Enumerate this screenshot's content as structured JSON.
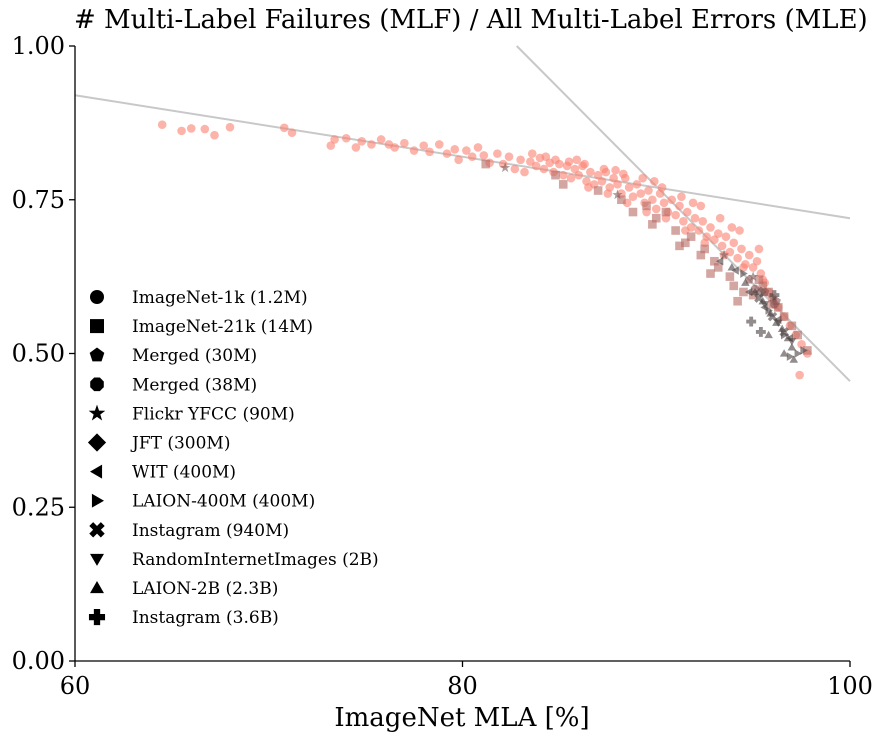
{
  "chart_data": {
    "type": "scatter",
    "title": "# Multi-Label Failures (MLF) / All Multi-Label Errors (MLE)",
    "xlabel": "ImageNet MLA [%]",
    "ylabel": "",
    "xlim": [
      60,
      100
    ],
    "ylim": [
      0.0,
      1.0
    ],
    "xticks": [
      "60",
      "80",
      "100"
    ],
    "yticks": [
      "0.00",
      "0.25",
      "0.50",
      "0.75",
      "1.00"
    ],
    "grid": false,
    "legend_position": "left",
    "colors": {
      "primary": "#fa8072",
      "secondary": "#b86a64",
      "dark": "#4a3f3f",
      "trend": "#c8c8c8"
    },
    "trend_lines": [
      {
        "x": [
          60,
          100
        ],
        "y": [
          0.92,
          0.72
        ]
      },
      {
        "x": [
          82.8,
          100
        ],
        "y": [
          1.0,
          0.455
        ]
      }
    ],
    "series": [
      {
        "name": "ImageNet-1k (1.2M)",
        "marker": "circle",
        "color": "#fa8072",
        "points": [
          [
            64.5,
            0.872
          ],
          [
            65.5,
            0.862
          ],
          [
            66.0,
            0.866
          ],
          [
            66.7,
            0.865
          ],
          [
            67.2,
            0.855
          ],
          [
            68.0,
            0.868
          ],
          [
            70.8,
            0.867
          ],
          [
            71.2,
            0.859
          ],
          [
            73.2,
            0.838
          ],
          [
            73.4,
            0.848
          ],
          [
            74.0,
            0.85
          ],
          [
            74.5,
            0.835
          ],
          [
            74.8,
            0.845
          ],
          [
            75.3,
            0.84
          ],
          [
            75.8,
            0.848
          ],
          [
            76.2,
            0.84
          ],
          [
            76.5,
            0.835
          ],
          [
            77.0,
            0.842
          ],
          [
            77.5,
            0.83
          ],
          [
            78.0,
            0.838
          ],
          [
            78.3,
            0.828
          ],
          [
            78.8,
            0.84
          ],
          [
            79.2,
            0.825
          ],
          [
            79.6,
            0.832
          ],
          [
            79.8,
            0.815
          ],
          [
            80.2,
            0.83
          ],
          [
            80.5,
            0.82
          ],
          [
            80.8,
            0.835
          ],
          [
            81.1,
            0.822
          ],
          [
            81.4,
            0.81
          ],
          [
            81.8,
            0.825
          ],
          [
            82.1,
            0.808
          ],
          [
            82.4,
            0.82
          ],
          [
            82.7,
            0.8
          ],
          [
            83.0,
            0.815
          ],
          [
            83.2,
            0.795
          ],
          [
            83.5,
            0.812
          ],
          [
            83.8,
            0.805
          ],
          [
            84.0,
            0.818
          ],
          [
            84.2,
            0.8
          ],
          [
            84.5,
            0.81
          ],
          [
            84.7,
            0.795
          ],
          [
            85.0,
            0.808
          ],
          [
            85.2,
            0.79
          ],
          [
            85.4,
            0.805
          ],
          [
            85.6,
            0.785
          ],
          [
            85.8,
            0.8
          ],
          [
            86.0,
            0.79
          ],
          [
            86.2,
            0.805
          ],
          [
            86.4,
            0.78
          ],
          [
            86.6,
            0.795
          ],
          [
            86.8,
            0.775
          ],
          [
            87.0,
            0.79
          ],
          [
            87.2,
            0.78
          ],
          [
            87.4,
            0.795
          ],
          [
            87.6,
            0.77
          ],
          [
            87.8,
            0.785
          ],
          [
            88.0,
            0.775
          ],
          [
            88.2,
            0.76
          ],
          [
            88.4,
            0.785
          ],
          [
            88.6,
            0.77
          ],
          [
            88.8,
            0.755
          ],
          [
            89.0,
            0.775
          ],
          [
            89.2,
            0.76
          ],
          [
            89.4,
            0.745
          ],
          [
            89.6,
            0.765
          ],
          [
            89.8,
            0.75
          ],
          [
            90.0,
            0.735
          ],
          [
            90.2,
            0.76
          ],
          [
            90.4,
            0.745
          ],
          [
            90.6,
            0.73
          ],
          [
            90.8,
            0.75
          ],
          [
            91.0,
            0.725
          ],
          [
            91.2,
            0.74
          ],
          [
            91.4,
            0.715
          ],
          [
            91.6,
            0.73
          ],
          [
            91.8,
            0.705
          ],
          [
            92.0,
            0.72
          ],
          [
            92.2,
            0.7
          ],
          [
            92.4,
            0.715
          ],
          [
            92.6,
            0.69
          ],
          [
            92.8,
            0.705
          ],
          [
            93.0,
            0.685
          ],
          [
            93.2,
            0.695
          ],
          [
            93.4,
            0.675
          ],
          [
            93.6,
            0.69
          ],
          [
            93.8,
            0.665
          ],
          [
            94.0,
            0.68
          ],
          [
            94.2,
            0.655
          ],
          [
            94.4,
            0.67
          ],
          [
            94.6,
            0.645
          ],
          [
            94.8,
            0.66
          ],
          [
            95.0,
            0.64
          ],
          [
            95.2,
            0.65
          ],
          [
            95.4,
            0.63
          ],
          [
            95.6,
            0.615
          ],
          [
            95.8,
            0.6
          ],
          [
            96.0,
            0.59
          ],
          [
            96.3,
            0.575
          ],
          [
            96.6,
            0.56
          ],
          [
            96.9,
            0.545
          ],
          [
            97.2,
            0.53
          ],
          [
            97.5,
            0.515
          ],
          [
            97.8,
            0.5
          ],
          [
            97.4,
            0.465
          ],
          [
            86.5,
            0.77
          ],
          [
            87.5,
            0.76
          ],
          [
            88.5,
            0.745
          ],
          [
            89.5,
            0.73
          ],
          [
            90.5,
            0.72
          ],
          [
            91.5,
            0.7
          ],
          [
            92.5,
            0.68
          ],
          [
            93.5,
            0.66
          ],
          [
            94.5,
            0.64
          ],
          [
            95.5,
            0.62
          ],
          [
            84.8,
            0.815
          ],
          [
            85.5,
            0.812
          ],
          [
            86.3,
            0.808
          ],
          [
            87.3,
            0.8
          ],
          [
            88.3,
            0.792
          ],
          [
            89.3,
            0.785
          ],
          [
            90.3,
            0.77
          ],
          [
            91.3,
            0.755
          ],
          [
            92.3,
            0.74
          ],
          [
            93.3,
            0.72
          ],
          [
            94.3,
            0.7
          ],
          [
            83.6,
            0.825
          ],
          [
            84.3,
            0.82
          ],
          [
            85.9,
            0.815
          ],
          [
            87.9,
            0.798
          ],
          [
            89.9,
            0.78
          ],
          [
            91.9,
            0.745
          ],
          [
            93.9,
            0.705
          ],
          [
            95.3,
            0.67
          ]
        ]
      },
      {
        "name": "ImageNet-21k (14M)",
        "marker": "square",
        "color": "#b86a64",
        "points": [
          [
            81.2,
            0.808
          ],
          [
            84.8,
            0.79
          ],
          [
            85.2,
            0.775
          ],
          [
            87.0,
            0.765
          ],
          [
            88.2,
            0.75
          ],
          [
            88.8,
            0.73
          ],
          [
            89.5,
            0.74
          ],
          [
            90.0,
            0.72
          ],
          [
            90.5,
            0.73
          ],
          [
            91.0,
            0.7
          ],
          [
            91.5,
            0.68
          ],
          [
            91.8,
            0.69
          ],
          [
            92.3,
            0.66
          ],
          [
            92.5,
            0.67
          ],
          [
            93.0,
            0.65
          ],
          [
            93.2,
            0.64
          ],
          [
            93.8,
            0.625
          ],
          [
            94.0,
            0.61
          ],
          [
            94.5,
            0.6
          ],
          [
            95.0,
            0.595
          ],
          [
            95.3,
            0.62
          ],
          [
            95.5,
            0.61
          ],
          [
            95.8,
            0.6
          ],
          [
            96.0,
            0.58
          ],
          [
            96.3,
            0.575
          ],
          [
            96.6,
            0.56
          ],
          [
            97.0,
            0.545
          ],
          [
            97.3,
            0.53
          ],
          [
            97.8,
            0.505
          ],
          [
            92.8,
            0.63
          ],
          [
            94.2,
            0.585
          ],
          [
            89.8,
            0.71
          ],
          [
            91.2,
            0.675
          ]
        ]
      },
      {
        "name": "Merged (30M)",
        "marker": "pentagon",
        "color": "#8c5250",
        "points": [
          [
            94.8,
            0.62
          ],
          [
            95.6,
            0.6
          ],
          [
            96.2,
            0.585
          ]
        ]
      },
      {
        "name": "Merged (38M)",
        "marker": "octagon",
        "color": "#8c5250",
        "points": [
          [
            95.1,
            0.605
          ],
          [
            96.1,
            0.58
          ]
        ]
      },
      {
        "name": "Flickr YFCC (90M)",
        "marker": "star",
        "color": "#7a5a58",
        "points": [
          [
            82.2,
            0.802
          ],
          [
            88.0,
            0.758
          ],
          [
            93.5,
            0.66
          ],
          [
            95.0,
            0.625
          ],
          [
            96.0,
            0.59
          ]
        ]
      },
      {
        "name": "JFT (300M)",
        "marker": "diamond",
        "color": "#6a4a48",
        "points": [
          [
            95.4,
            0.6
          ]
        ]
      },
      {
        "name": "WIT (400M)",
        "marker": "triangle-left",
        "color": "#4a3f3f",
        "points": [
          [
            93.3,
            0.65
          ],
          [
            94.1,
            0.635
          ],
          [
            94.8,
            0.6
          ],
          [
            95.6,
            0.575
          ],
          [
            96.3,
            0.555
          ],
          [
            96.9,
            0.525
          ]
        ]
      },
      {
        "name": "LAION-400M (400M)",
        "marker": "triangle-right",
        "color": "#4a3f3f",
        "points": [
          [
            94.5,
            0.63
          ],
          [
            95.8,
            0.57
          ],
          [
            96.6,
            0.53
          ],
          [
            97.3,
            0.5
          ],
          [
            97.6,
            0.505
          ],
          [
            96.9,
            0.495
          ]
        ]
      },
      {
        "name": "Instagram (940M)",
        "marker": "x",
        "color": "#4a3f3f",
        "points": [
          [
            95.3,
            0.59
          ],
          [
            96.0,
            0.56
          ],
          [
            96.6,
            0.535
          ]
        ]
      },
      {
        "name": "RandomInternetImages (2B)",
        "marker": "triangle-down",
        "color": "#4a3f3f",
        "points": [
          [
            95.6,
            0.58
          ],
          [
            96.3,
            0.55
          ],
          [
            97.0,
            0.52
          ]
        ]
      },
      {
        "name": "LAION-2B (2.3B)",
        "marker": "triangle-up",
        "color": "#4a3f3f",
        "points": [
          [
            93.9,
            0.64
          ],
          [
            94.6,
            0.615
          ],
          [
            95.1,
            0.6
          ],
          [
            95.5,
            0.585
          ],
          [
            95.9,
            0.565
          ],
          [
            96.2,
            0.55
          ],
          [
            96.5,
            0.54
          ],
          [
            96.8,
            0.525
          ],
          [
            97.0,
            0.51
          ],
          [
            96.6,
            0.5
          ],
          [
            97.1,
            0.49
          ],
          [
            95.8,
            0.53
          ]
        ]
      },
      {
        "name": "Instagram (3.6B)",
        "marker": "plus",
        "color": "#4a3f3f",
        "points": [
          [
            94.9,
            0.552
          ],
          [
            95.4,
            0.535
          ],
          [
            96.1,
            0.595
          ]
        ]
      }
    ]
  }
}
